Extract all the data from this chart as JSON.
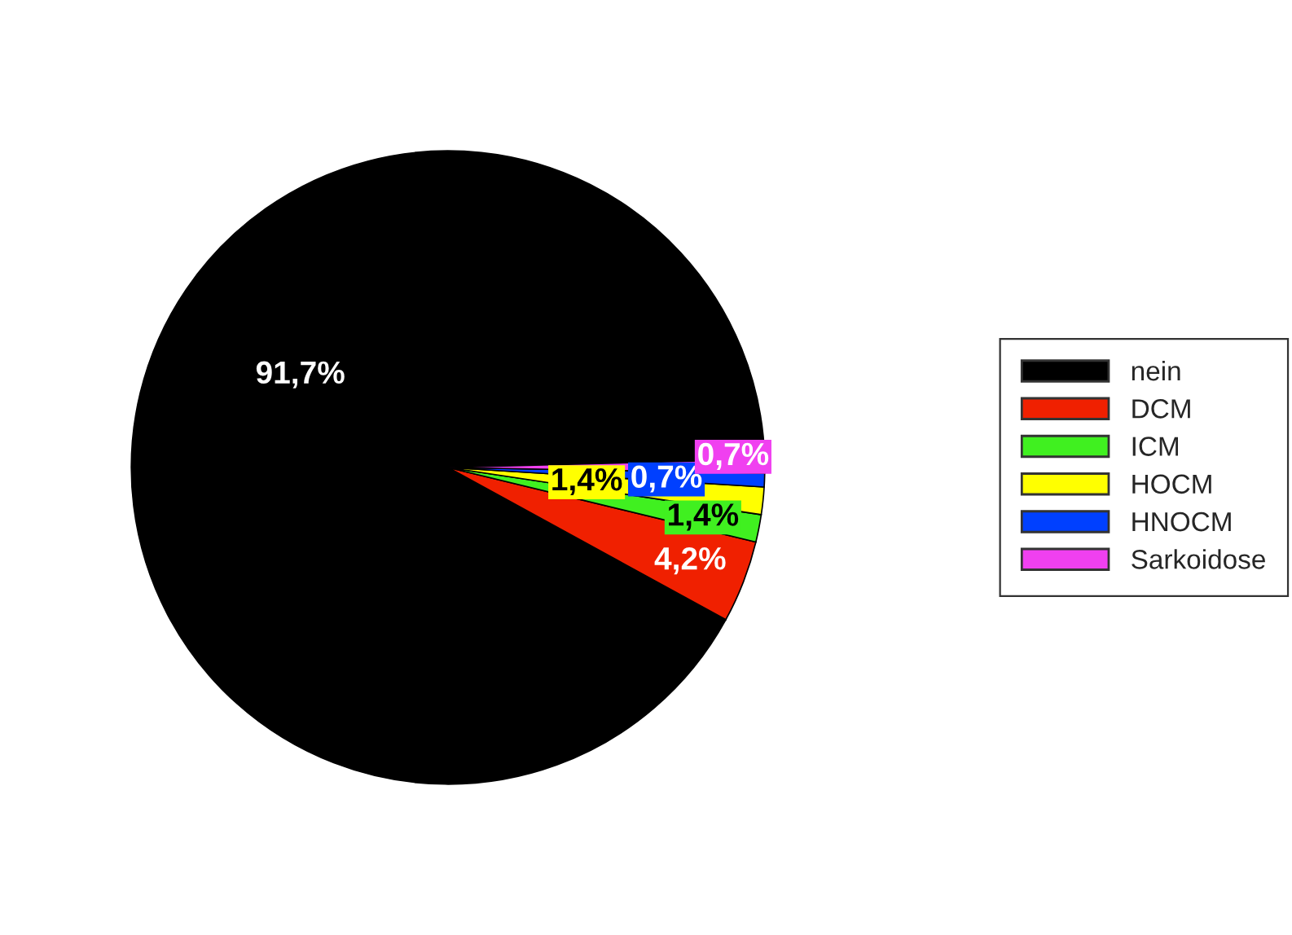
{
  "chart_data": {
    "type": "pie",
    "categories": [
      "nein",
      "DCM",
      "ICM",
      "HOCM",
      "HNOCM",
      "Sarkoidose"
    ],
    "values": [
      91.7,
      4.2,
      1.4,
      1.4,
      0.7,
      0.7
    ],
    "colors": [
      "#000000",
      "#f02000",
      "#40f020",
      "#ffff00",
      "#0040ff",
      "#f040f0"
    ],
    "value_labels": [
      "91,7%",
      "4,2%",
      "1,4%",
      "1,4%",
      "0,7%",
      "0,7%"
    ],
    "legend": "right"
  }
}
